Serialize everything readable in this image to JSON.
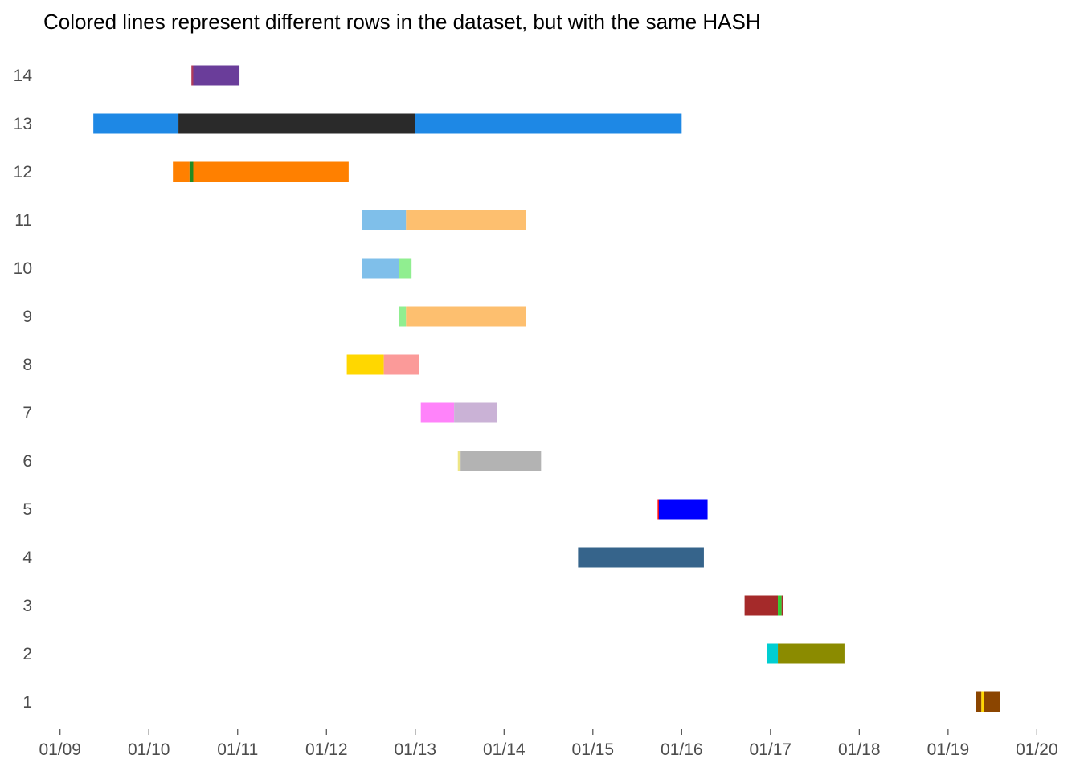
{
  "chart_data": {
    "type": "gantt",
    "title": "Colored lines represent different rows in the dataset, but with the same HASH",
    "xlabel": "",
    "ylabel": "",
    "x_tick_labels": [
      "01/09",
      "01/10",
      "01/11",
      "01/12",
      "01/13",
      "01/14",
      "01/15",
      "01/16",
      "01/17",
      "01/18",
      "01/19",
      "01/20"
    ],
    "x_tick_dates": [
      "2000-01-09",
      "2000-01-10",
      "2000-01-11",
      "2000-01-12",
      "2000-01-13",
      "2000-01-14",
      "2000-01-15",
      "2000-01-16",
      "2000-01-17",
      "2000-01-18",
      "2000-01-19",
      "2000-01-20"
    ],
    "xlim": [
      "2000-01-08T19:30",
      "2000-01-20T06:00"
    ],
    "y_categories": [
      "1",
      "2",
      "3",
      "4",
      "5",
      "6",
      "7",
      "8",
      "9",
      "10",
      "11",
      "12",
      "13",
      "14"
    ],
    "grid": false,
    "legend": "none",
    "segments": [
      {
        "row": "14",
        "start": "2000-01-10T11:30",
        "end": "2000-01-10T12:00",
        "color": "#B03A5B"
      },
      {
        "row": "14",
        "start": "2000-01-10T12:00",
        "end": "2000-01-11T00:30",
        "color": "#6A3D9A"
      },
      {
        "row": "13",
        "start": "2000-01-09T09:00",
        "end": "2000-01-10T08:00",
        "color": "#1E88E5"
      },
      {
        "row": "13",
        "start": "2000-01-10T08:00",
        "end": "2000-01-13T00:00",
        "color": "#2A2A2A"
      },
      {
        "row": "13",
        "start": "2000-01-13T00:00",
        "end": "2000-01-16T00:00",
        "color": "#1E88E5"
      },
      {
        "row": "12",
        "start": "2000-01-10T06:30",
        "end": "2000-01-10T11:00",
        "color": "#FF8000"
      },
      {
        "row": "12",
        "start": "2000-01-10T11:00",
        "end": "2000-01-10T12:00",
        "color": "#228B22"
      },
      {
        "row": "12",
        "start": "2000-01-10T12:00",
        "end": "2000-01-12T06:00",
        "color": "#FF8000"
      },
      {
        "row": "11",
        "start": "2000-01-12T09:30",
        "end": "2000-01-12T21:30",
        "color": "#7FBFEA"
      },
      {
        "row": "11",
        "start": "2000-01-12T21:30",
        "end": "2000-01-14T06:00",
        "color": "#FDBF6F"
      },
      {
        "row": "10",
        "start": "2000-01-12T09:30",
        "end": "2000-01-12T19:30",
        "color": "#7FBFEA"
      },
      {
        "row": "10",
        "start": "2000-01-12T19:30",
        "end": "2000-01-12T23:00",
        "color": "#90EE90"
      },
      {
        "row": "9",
        "start": "2000-01-12T19:30",
        "end": "2000-01-12T21:30",
        "color": "#90EE90"
      },
      {
        "row": "9",
        "start": "2000-01-12T21:30",
        "end": "2000-01-14T06:00",
        "color": "#FDBF6F"
      },
      {
        "row": "8",
        "start": "2000-01-12T05:30",
        "end": "2000-01-12T15:30",
        "color": "#FFD700"
      },
      {
        "row": "8",
        "start": "2000-01-12T15:30",
        "end": "2000-01-13T01:00",
        "color": "#FB9A99"
      },
      {
        "row": "7",
        "start": "2000-01-13T01:30",
        "end": "2000-01-13T10:30",
        "color": "#FF83FA"
      },
      {
        "row": "7",
        "start": "2000-01-13T10:30",
        "end": "2000-01-13T22:00",
        "color": "#CAB2D6"
      },
      {
        "row": "6",
        "start": "2000-01-13T11:30",
        "end": "2000-01-13T12:15",
        "color": "#EEE685"
      },
      {
        "row": "6",
        "start": "2000-01-13T12:15",
        "end": "2000-01-14T10:00",
        "color": "#B3B3B3"
      },
      {
        "row": "5",
        "start": "2000-01-15T17:30",
        "end": "2000-01-15T17:50",
        "color": "#FF0000"
      },
      {
        "row": "5",
        "start": "2000-01-15T17:50",
        "end": "2000-01-16T07:00",
        "color": "#0000FF"
      },
      {
        "row": "4",
        "start": "2000-01-14T20:00",
        "end": "2000-01-16T06:00",
        "color": "#36648B"
      },
      {
        "row": "3",
        "start": "2000-01-16T17:00",
        "end": "2000-01-17T02:00",
        "color": "#A52A2A"
      },
      {
        "row": "3",
        "start": "2000-01-17T02:00",
        "end": "2000-01-17T03:00",
        "color": "#32CD32"
      },
      {
        "row": "3",
        "start": "2000-01-17T03:00",
        "end": "2000-01-17T03:30",
        "color": "#A52A2A"
      },
      {
        "row": "2",
        "start": "2000-01-16T23:00",
        "end": "2000-01-17T02:00",
        "color": "#00CED1"
      },
      {
        "row": "2",
        "start": "2000-01-17T02:00",
        "end": "2000-01-17T20:00",
        "color": "#8B8B00"
      },
      {
        "row": "1",
        "start": "2000-01-19T07:30",
        "end": "2000-01-19T09:00",
        "color": "#8B4500"
      },
      {
        "row": "1",
        "start": "2000-01-19T09:00",
        "end": "2000-01-19T09:45",
        "color": "#FFD700"
      },
      {
        "row": "1",
        "start": "2000-01-19T09:45",
        "end": "2000-01-19T14:00",
        "color": "#8B4500"
      }
    ]
  }
}
